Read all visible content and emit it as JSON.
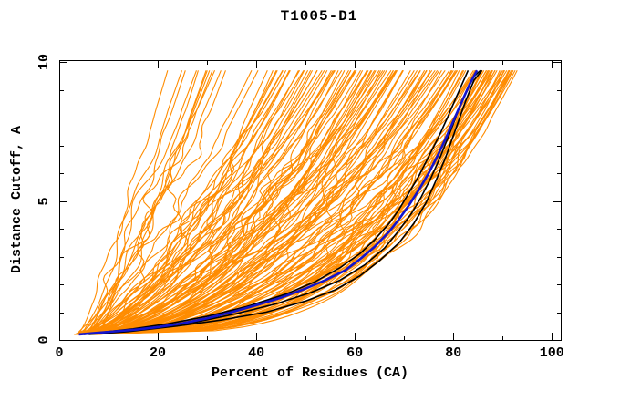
{
  "window": {
    "title": "T1005-D1"
  },
  "chart_data": {
    "type": "line",
    "title": "T1005-D1",
    "xlabel": "Percent of Residues (CA)",
    "ylabel": "Distance Cutoff, A",
    "x_range": [
      0,
      101.8
    ],
    "y_range": [
      0,
      10.07
    ],
    "grid": false,
    "legend": null,
    "background": "#ffffff",
    "frame_color": "#000000",
    "x_ticks": {
      "major": [
        0,
        20,
        40,
        60,
        80,
        100
      ],
      "labels": [
        "0",
        "20",
        "40",
        "60",
        "80",
        "100"
      ],
      "minor": [
        10,
        30,
        50,
        70,
        90
      ]
    },
    "y_ticks": {
      "major": [
        0,
        5,
        10
      ],
      "labels": [
        "0",
        "5",
        "10"
      ],
      "minor": [
        1,
        2,
        3,
        4,
        6,
        7,
        8,
        9
      ]
    },
    "series": [
      {
        "name": "reference-model-black-1",
        "color": "#000000",
        "width": 1.6,
        "points": [
          [
            4,
            0.2
          ],
          [
            9,
            0.28
          ],
          [
            15,
            0.4
          ],
          [
            22,
            0.58
          ],
          [
            30,
            0.85
          ],
          [
            38,
            1.2
          ],
          [
            46,
            1.65
          ],
          [
            52,
            2.1
          ],
          [
            57,
            2.6
          ],
          [
            61,
            3.1
          ],
          [
            64,
            3.6
          ],
          [
            67,
            4.2
          ],
          [
            69,
            4.7
          ],
          [
            71,
            5.3
          ],
          [
            73,
            5.9
          ],
          [
            75,
            6.6
          ],
          [
            77,
            7.3
          ],
          [
            78.8,
            8.0
          ],
          [
            80.5,
            8.7
          ],
          [
            82,
            9.3
          ],
          [
            83,
            9.7
          ]
        ]
      },
      {
        "name": "reference-model-black-2",
        "color": "#000000",
        "width": 1.6,
        "points": [
          [
            5,
            0.2
          ],
          [
            12,
            0.3
          ],
          [
            20,
            0.45
          ],
          [
            28,
            0.65
          ],
          [
            36,
            0.95
          ],
          [
            44,
            1.3
          ],
          [
            51,
            1.7
          ],
          [
            57,
            2.15
          ],
          [
            62,
            2.7
          ],
          [
            66,
            3.3
          ],
          [
            69,
            3.95
          ],
          [
            71.5,
            4.55
          ],
          [
            73.5,
            5.15
          ],
          [
            75.5,
            5.85
          ],
          [
            77.5,
            6.65
          ],
          [
            79.3,
            7.45
          ],
          [
            81,
            8.25
          ],
          [
            82.8,
            9.0
          ],
          [
            84.3,
            9.5
          ],
          [
            85.5,
            9.7
          ]
        ]
      },
      {
        "name": "reference-model-black-3",
        "color": "#000000",
        "width": 1.6,
        "points": [
          [
            6,
            0.2
          ],
          [
            14,
            0.3
          ],
          [
            24,
            0.5
          ],
          [
            33,
            0.72
          ],
          [
            42,
            1.0
          ],
          [
            50,
            1.4
          ],
          [
            56,
            1.8
          ],
          [
            61,
            2.3
          ],
          [
            65,
            2.85
          ],
          [
            69,
            3.5
          ],
          [
            72,
            4.2
          ],
          [
            74.5,
            4.95
          ],
          [
            76.5,
            5.75
          ],
          [
            78.5,
            6.6
          ],
          [
            80.5,
            7.6
          ],
          [
            82.5,
            8.6
          ],
          [
            84.2,
            9.35
          ],
          [
            85.8,
            9.7
          ]
        ]
      },
      {
        "name": "highlighted-model-blue",
        "color": "#1414CC",
        "width": 2.6,
        "points": [
          [
            4,
            0.2
          ],
          [
            8,
            0.26
          ],
          [
            12,
            0.32
          ],
          [
            16,
            0.38
          ],
          [
            20,
            0.46
          ],
          [
            25,
            0.6
          ],
          [
            30,
            0.78
          ],
          [
            35,
            1.0
          ],
          [
            40,
            1.25
          ],
          [
            45,
            1.52
          ],
          [
            50,
            1.85
          ],
          [
            54,
            2.15
          ],
          [
            58,
            2.5
          ],
          [
            61,
            2.9
          ],
          [
            64,
            3.35
          ],
          [
            67,
            3.9
          ],
          [
            69,
            4.35
          ],
          [
            71,
            4.85
          ],
          [
            73,
            5.4
          ],
          [
            75,
            6.0
          ],
          [
            77,
            6.7
          ],
          [
            78.7,
            7.35
          ],
          [
            80.3,
            8.0
          ],
          [
            81.8,
            8.6
          ],
          [
            83.3,
            9.2
          ],
          [
            84.8,
            9.7
          ]
        ]
      }
    ],
    "ensemble": {
      "name": "all-server-models-orange",
      "color": "#FF8C00",
      "line_width": 1.1,
      "count": 140,
      "seed": 1337,
      "y_start": 0.2,
      "y_top": 9.7,
      "x_start_range": [
        3,
        7
      ],
      "top_x_range": [
        10,
        93
      ],
      "top_x_bias": 0.45,
      "shape_base": 0.95,
      "shape_slope": 0.0075,
      "shape_jitter": 0.16,
      "shape_exponent_range": [
        0.28,
        0.95
      ],
      "wobble_amp_range": [
        0.4,
        2.2
      ]
    }
  }
}
